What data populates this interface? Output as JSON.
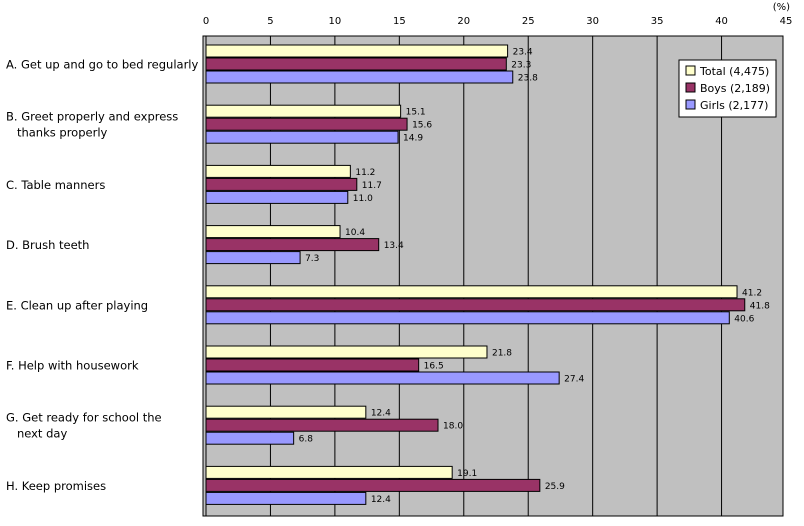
{
  "chart_data": {
    "type": "bar",
    "orientation": "horizontal",
    "unit_label": "(%)",
    "xlim": [
      0,
      45
    ],
    "ticks": [
      0,
      5,
      10,
      15,
      20,
      25,
      30,
      35,
      40,
      45
    ],
    "grid": true,
    "legend_position": "top-right",
    "categories": [
      [
        "A. Get up and go to bed regularly"
      ],
      [
        "B. Greet properly and express",
        "   thanks properly"
      ],
      [
        "C. Table manners"
      ],
      [
        "D. Brush teeth"
      ],
      [
        "E. Clean up after playing"
      ],
      [
        "F. Help with housework"
      ],
      [
        "G. Get ready for school the",
        "   next day"
      ],
      [
        "H. Keep promises"
      ]
    ],
    "series": [
      {
        "name": "Total (4,475)",
        "color": "#FFFFCC",
        "values": [
          23.4,
          15.1,
          11.2,
          10.4,
          41.2,
          21.8,
          12.4,
          19.1
        ],
        "labels": [
          "23.4",
          "15.1",
          "11.2",
          "10.4",
          "41.2",
          "21.8",
          "12.4",
          "19.1"
        ]
      },
      {
        "name": "Boys (2,189)",
        "color": "#993366",
        "values": [
          23.3,
          15.6,
          11.7,
          13.4,
          41.8,
          16.5,
          18.0,
          25.9
        ],
        "labels": [
          "23.3",
          "15.6",
          "11.7",
          "13.4",
          "41.8",
          "16.5",
          "18.0",
          "25.9"
        ]
      },
      {
        "name": "Girls (2,177)",
        "color": "#9999FF",
        "values": [
          23.8,
          14.9,
          11.0,
          7.3,
          40.6,
          27.4,
          6.8,
          12.4
        ],
        "labels": [
          "23.8",
          "14.9",
          "11.0",
          "7.3",
          "40.6",
          "27.4",
          "6.8",
          "12.4"
        ]
      }
    ],
    "plot_background": "#C0C0C0"
  }
}
